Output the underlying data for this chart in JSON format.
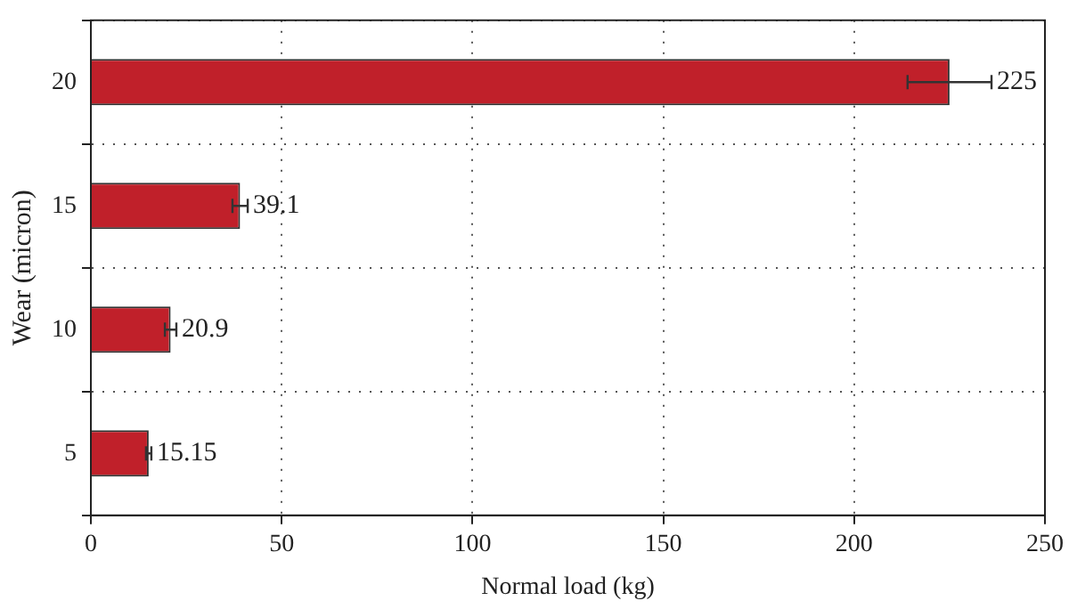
{
  "chart_data": {
    "type": "bar",
    "orientation": "horizontal",
    "xlabel": "Normal load (kg)",
    "ylabel": "Wear (micron)",
    "categories": [
      "20",
      "15",
      "10",
      "5"
    ],
    "values": [
      225,
      39.1,
      20.9,
      15.15
    ],
    "errors": [
      11,
      2,
      1.5,
      0.7
    ],
    "color": "#c0202a",
    "xlim": [
      0,
      250
    ],
    "xticks": [
      0,
      50,
      100,
      150,
      200,
      250
    ],
    "grid": true,
    "data_labels": true
  }
}
